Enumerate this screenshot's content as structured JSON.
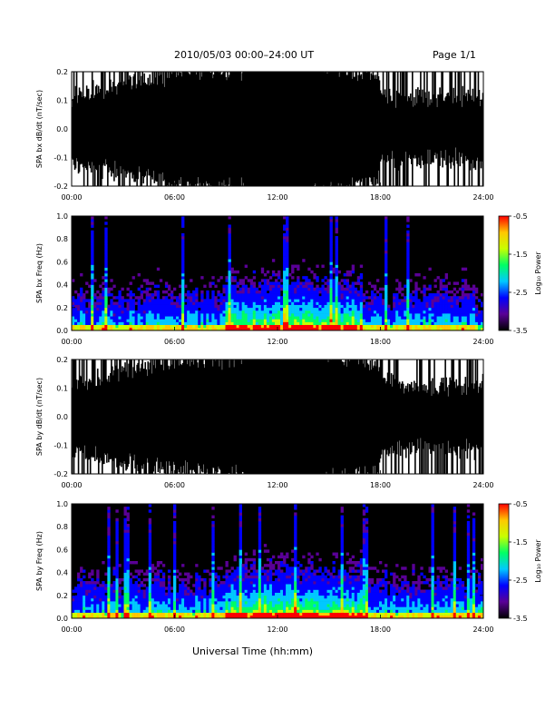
{
  "header": {
    "title": "2010/05/03  00:00–24:00 UT",
    "page": "Page 1/1"
  },
  "chart_data": [
    {
      "type": "line",
      "ylabel": "SPA bx dB/dt (nT/sec)",
      "xlim": [
        0,
        24
      ],
      "ylim": [
        -0.2,
        0.2
      ],
      "yticks": [
        "0.2",
        "0.1",
        "0.0",
        "-0.1",
        "-0.2"
      ],
      "xticks": [
        "00:00",
        "06:00",
        "12:00",
        "18:00",
        "24:00"
      ],
      "series_color": "#000000",
      "note_trace": "dense oscillating waveform spanning roughly ±0.2 nT/sec"
    },
    {
      "type": "heatmap",
      "ylabel": "SPA bx Freq (Hz)",
      "xlim": [
        0,
        24
      ],
      "ylim": [
        0,
        1.0
      ],
      "yticks": [
        "1.0",
        "0.8",
        "0.6",
        "0.4",
        "0.2",
        "0.0"
      ],
      "xticks": [
        "00:00",
        "06:00",
        "12:00",
        "18:00",
        "24:00"
      ],
      "colorbar": {
        "label": "Log₁₀ Power",
        "ticks": [
          "-0.5",
          "-1.5",
          "-2.5",
          "-3.5"
        ],
        "range": [
          -3.5,
          -0.5
        ],
        "colors": [
          "#000000",
          "#5a0096",
          "#0000ff",
          "#00c8ff",
          "#00ff64",
          "#c8ff00",
          "#ffc800",
          "#ff0000"
        ]
      }
    },
    {
      "type": "line",
      "ylabel": "SPA by dB/dt (nT/sec)",
      "xlim": [
        0,
        24
      ],
      "ylim": [
        -0.2,
        0.2
      ],
      "yticks": [
        "0.2",
        "0.1",
        "0.0",
        "-0.1",
        "-0.2"
      ],
      "xticks": [
        "00:00",
        "06:00",
        "12:00",
        "18:00",
        "24:00"
      ],
      "series_color": "#000000"
    },
    {
      "type": "heatmap",
      "ylabel": "SPA by Freq (Hz)",
      "xlim": [
        0,
        24
      ],
      "ylim": [
        0,
        1.0
      ],
      "yticks": [
        "1.0",
        "0.8",
        "0.6",
        "0.4",
        "0.2",
        "0.0"
      ],
      "xticks": [
        "00:00",
        "06:00",
        "12:00",
        "18:00",
        "24:00"
      ],
      "colorbar": {
        "label": "Log₁₀ Power",
        "ticks": [
          "-0.5",
          "-1.5",
          "-2.5",
          "-3.5"
        ],
        "range": [
          -3.5,
          -0.5
        ],
        "colors": [
          "#000000",
          "#5a0096",
          "#0000ff",
          "#00c8ff",
          "#00ff64",
          "#c8ff00",
          "#ffc800",
          "#ff0000"
        ]
      }
    }
  ],
  "xlabel": "Universal Time (hh:mm)"
}
